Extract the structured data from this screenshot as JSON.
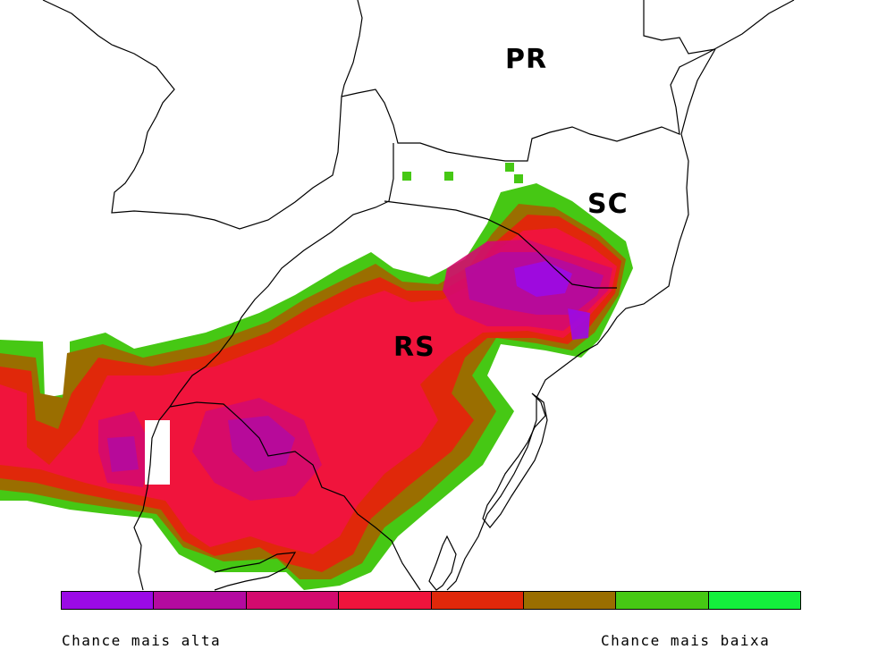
{
  "map": {
    "labels": {
      "pr": "PR",
      "sc": "SC",
      "rs": "RS"
    },
    "colors": {
      "background": "#ffffff",
      "border": "#000000"
    }
  },
  "legend": {
    "colors": [
      "#9b0ae6",
      "#b40aa0",
      "#d40a6e",
      "#f0143c",
      "#e0280a",
      "#9a6e00",
      "#46c814",
      "#14f03c"
    ],
    "left_label": "Chance mais alta",
    "right_label": "Chance mais baixa"
  }
}
